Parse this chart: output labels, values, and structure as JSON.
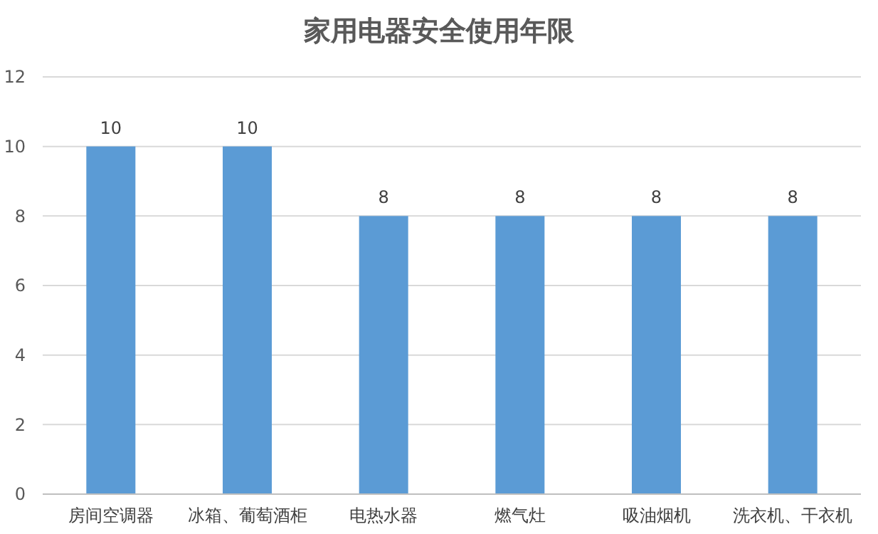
{
  "chart_data": {
    "type": "bar",
    "title": "家用电器安全使用年限",
    "categories": [
      "房间空调器",
      "冰箱、葡萄酒柜",
      "电热水器",
      "燃气灶",
      "吸油烟机",
      "洗衣机、干衣机"
    ],
    "values": [
      10,
      10,
      8,
      8,
      8,
      8
    ],
    "color": "#5b9bd5",
    "ylim": [
      0,
      12
    ],
    "yticks": [
      0,
      2,
      4,
      6,
      8,
      10,
      12
    ],
    "grid": "y",
    "data_labels": true
  }
}
